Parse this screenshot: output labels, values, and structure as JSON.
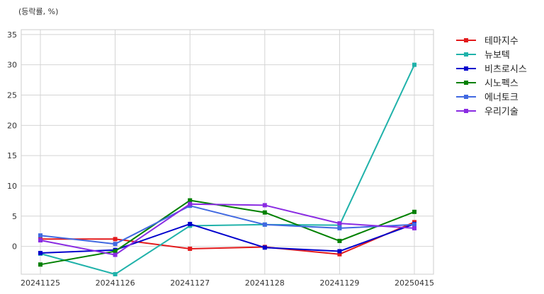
{
  "chart_data": {
    "type": "line",
    "unit_note": "(등락률, %)",
    "title": "",
    "xlabel": "",
    "ylabel": "",
    "categories": [
      "20241125",
      "20241126",
      "20241127",
      "20241128",
      "20241129",
      "20250415"
    ],
    "ylim": [
      -4.6,
      35.8
    ],
    "yticks": [
      0,
      5,
      10,
      15,
      20,
      25,
      30,
      35
    ],
    "grid": true,
    "legend_position": "outside-right-top",
    "series": [
      {
        "name": "테마지수",
        "color": "#e31a1c",
        "values": [
          1.2,
          1.2,
          -0.4,
          -0.1,
          -1.3,
          4.0
        ]
      },
      {
        "name": "뉴보텍",
        "color": "#20b2aa",
        "values": [
          -1.2,
          -4.6,
          3.4,
          3.6,
          3.5,
          30.0
        ]
      },
      {
        "name": "비츠로시스",
        "color": "#0000cd",
        "values": [
          -1.1,
          -0.6,
          3.7,
          -0.2,
          -0.8,
          3.7
        ]
      },
      {
        "name": "시노펙스",
        "color": "#008000",
        "values": [
          -3.0,
          -0.8,
          7.6,
          5.6,
          0.9,
          5.7
        ]
      },
      {
        "name": "에너토크",
        "color": "#4169e1",
        "values": [
          1.8,
          0.4,
          6.7,
          3.6,
          3.0,
          3.6
        ]
      },
      {
        "name": "우리기술",
        "color": "#8a2be2",
        "values": [
          1.0,
          -1.4,
          7.0,
          6.8,
          3.8,
          3.0
        ]
      }
    ]
  }
}
